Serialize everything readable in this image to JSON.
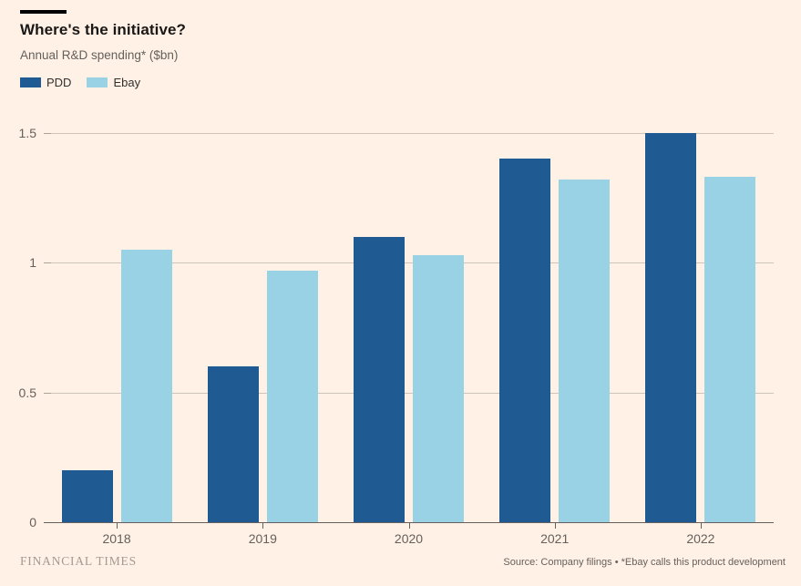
{
  "page": {
    "title": "Where's the initiative?",
    "subtitle": "Annual R&D spending* ($bn)",
    "footer_left": "FINANCIAL TIMES",
    "footer_right": "Source: Company filings • *Ebay calls this product development"
  },
  "colors": {
    "background": "#FFF1E5",
    "pdd": "#1F5A93",
    "ebay": "#99D2E4",
    "gridline": "#CEC5BA",
    "axis_line": "#66605C",
    "text_primary": "#1A1817",
    "text_secondary": "#66605C",
    "kicker_bar": "#000000",
    "footer_logo": "#A39A91"
  },
  "chart_data": {
    "type": "bar",
    "title": "Where's the initiative?",
    "subtitle": "Annual R&D spending* ($bn)",
    "categories": [
      "2018",
      "2019",
      "2020",
      "2021",
      "2022"
    ],
    "series": [
      {
        "name": "PDD",
        "color_key": "pdd",
        "values": [
          0.2,
          0.6,
          1.1,
          1.4,
          1.5
        ]
      },
      {
        "name": "Ebay",
        "color_key": "ebay",
        "values": [
          1.05,
          0.97,
          1.03,
          1.32,
          1.33
        ]
      }
    ],
    "xlabel": "",
    "ylabel": "",
    "ylim": [
      0,
      1.5
    ],
    "yticks": [
      0,
      0.5,
      1,
      1.5
    ],
    "ytick_labels": [
      "0",
      "0.5",
      "1",
      "1.5"
    ],
    "grid": "horizontal",
    "legend_position": "top-left",
    "source": "Source: Company filings • *Ebay calls this product development"
  }
}
